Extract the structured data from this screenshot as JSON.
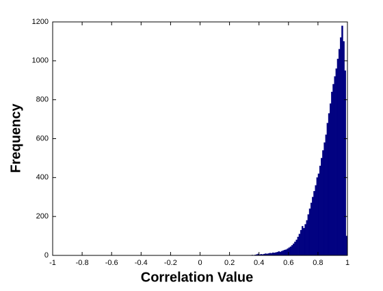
{
  "chart_data": {
    "type": "histogram",
    "xlabel": "Correlation Value",
    "ylabel": "Frequency",
    "color": "#000080",
    "bins": [
      0.3,
      0.31,
      0.32,
      0.33,
      0.34,
      0.35,
      0.36,
      0.37,
      0.38,
      0.39,
      0.4,
      0.41,
      0.42,
      0.43,
      0.44,
      0.45,
      0.46,
      0.47,
      0.48,
      0.49,
      0.5,
      0.51,
      0.52,
      0.53,
      0.54,
      0.55,
      0.56,
      0.57,
      0.58,
      0.59,
      0.6,
      0.61,
      0.62,
      0.63,
      0.64,
      0.65,
      0.66,
      0.67,
      0.68,
      0.69,
      0.7,
      0.71,
      0.72,
      0.73,
      0.74,
      0.75,
      0.76,
      0.77,
      0.78,
      0.79,
      0.8,
      0.81,
      0.82,
      0.83,
      0.84,
      0.85,
      0.86,
      0.87,
      0.88,
      0.89,
      0.9,
      0.91,
      0.92,
      0.93,
      0.94,
      0.95,
      0.96,
      0.97,
      0.98,
      0.99,
      1.0
    ],
    "values": [
      0,
      0,
      1,
      0,
      1,
      2,
      1,
      3,
      5,
      8,
      4,
      6,
      5,
      7,
      9,
      8,
      10,
      12,
      11,
      14,
      13,
      15,
      17,
      20,
      18,
      22,
      25,
      28,
      30,
      35,
      40,
      45,
      52,
      60,
      70,
      80,
      95,
      110,
      130,
      150,
      140,
      160,
      180,
      210,
      240,
      270,
      300,
      330,
      360,
      400,
      420,
      460,
      500,
      540,
      580,
      620,
      680,
      730,
      780,
      840,
      880,
      920,
      960,
      1010,
      1060,
      1120,
      1180,
      1100,
      950,
      100
    ],
    "xlim": [
      -1,
      1
    ],
    "xticks": [
      -1,
      -0.8,
      -0.6,
      -0.4,
      -0.2,
      0,
      0.2,
      0.4,
      0.6,
      0.8,
      1
    ],
    "ylim": [
      0,
      1200
    ],
    "yticks": [
      0,
      200,
      400,
      600,
      800,
      1000,
      1200
    ],
    "grid": false
  }
}
